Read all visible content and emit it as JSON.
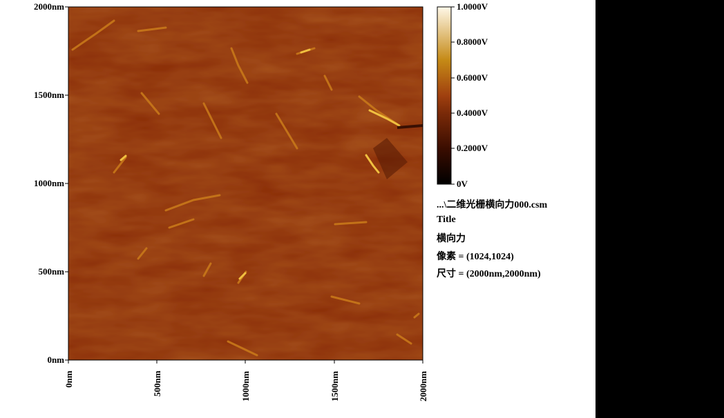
{
  "image": {
    "colormap": "afm-hot",
    "x_axis": {
      "ticks": [
        "0nm",
        "500nm",
        "1000nm",
        "1500nm",
        "2000nm"
      ]
    },
    "y_axis": {
      "ticks": [
        "2000nm",
        "1500nm",
        "1000nm",
        "500nm",
        "0nm"
      ]
    }
  },
  "colorbar": {
    "ticks": [
      "1.0000V",
      "0.8000V",
      "0.6000V",
      "0.4000V",
      "0.2000V",
      "0V"
    ],
    "colors": [
      "#000000",
      "#3a0d00",
      "#7a2a08",
      "#a0400f",
      "#c58a16",
      "#fff8e8"
    ]
  },
  "info": {
    "filename": "...\\二维光栅横向力000.csm",
    "title_label": "Title",
    "title_value": "横向力",
    "pixels": "像素 = (1024,1024)",
    "size": "尺寸 = (2000nm,2000nm)"
  }
}
